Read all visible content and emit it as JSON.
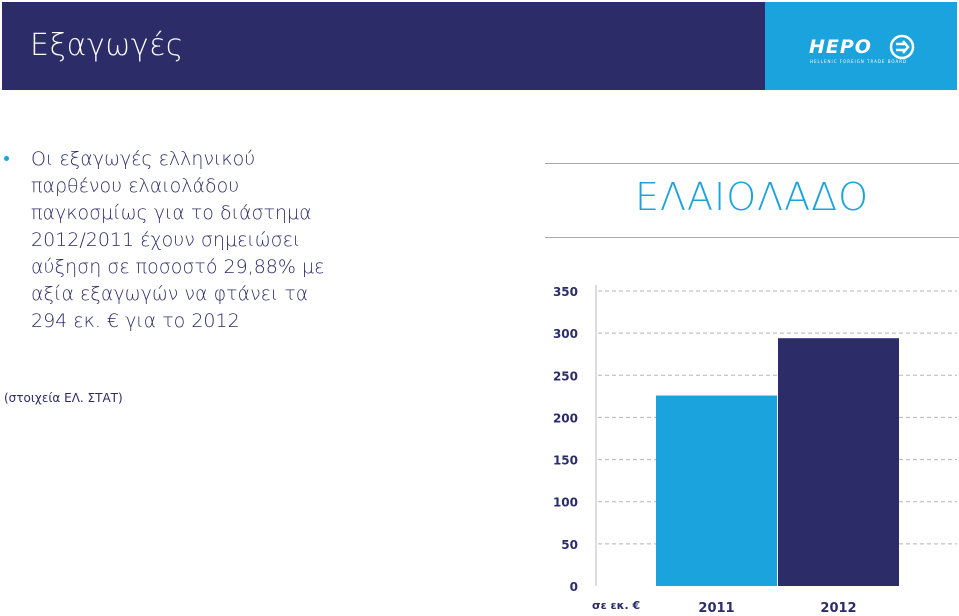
{
  "header": {
    "title": "Εξαγωγές",
    "logo_text": "HEPO",
    "logo_sub": "HELLENIC FOREIGN TRADE BOARD"
  },
  "body": {
    "bullet_lines": [
      "Οι εξαγωγές ελληνικού",
      "παρθένου ελαιολάδου",
      "παγκοσμίως για το διάστημα",
      "2012/2011 έχουν σημειώσει",
      "αύξηση σε ποσοστό 29,88% με",
      "αξία εξαγωγών να φτάνει τα",
      "294 εκ. € για το 2012"
    ],
    "source_note": "(στοιχεία ΕΛ. ΣΤΑΤ)"
  },
  "colors": {
    "header_bg": "#2c2c68",
    "logo_bg": "#1aa3dc",
    "bar_2011": "#1aa3dc",
    "bar_2012": "#2c2c68"
  },
  "chart_data": {
    "type": "bar",
    "title": "ΕΛΑΙΟΛΑΔΟ",
    "xlabel": "σε εκ. €",
    "ylabel": "",
    "categories": [
      "2011",
      "2012"
    ],
    "values": [
      226,
      294
    ],
    "ylim": [
      0,
      350
    ],
    "yticks": [
      0,
      50,
      100,
      150,
      200,
      250,
      300,
      350
    ],
    "grid": true
  }
}
